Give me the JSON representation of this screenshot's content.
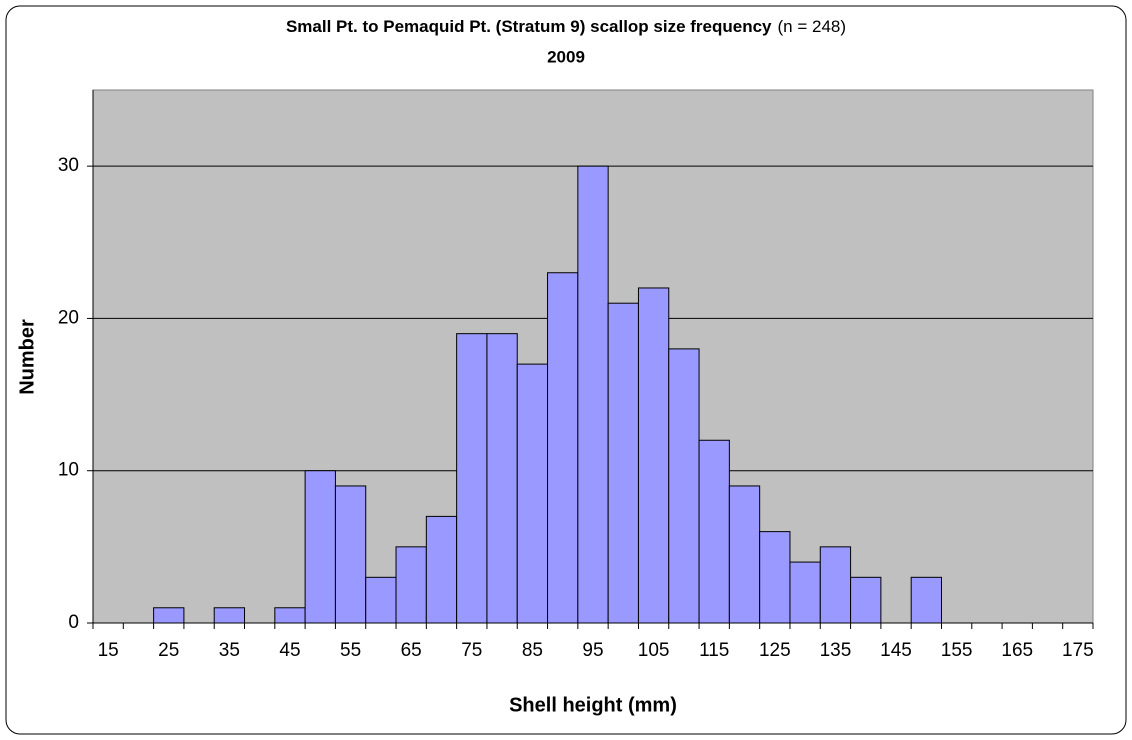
{
  "chart_data": {
    "type": "bar",
    "title": "Small Pt. to Pemaquid Pt. (Stratum 9) scallop size frequency",
    "title_note": "(n = 248)",
    "subtitle": "2009",
    "x_label": "Shell height (mm)",
    "y_label": "Number",
    "categories": [
      "15",
      null,
      "25",
      null,
      "35",
      null,
      "45",
      null,
      "55",
      null,
      "65",
      null,
      "75",
      null,
      "85",
      null,
      "95",
      null,
      "105",
      null,
      "115",
      null,
      "125",
      null,
      "135",
      null,
      "145",
      null,
      "155",
      null,
      "165",
      null,
      "175"
    ],
    "values": [
      0,
      0,
      1,
      0,
      1,
      0,
      1,
      10,
      9,
      3,
      5,
      7,
      19,
      19,
      17,
      23,
      30,
      21,
      22,
      18,
      12,
      9,
      6,
      4,
      5,
      3,
      0,
      3,
      0,
      0,
      0,
      0,
      0
    ],
    "color": "#9999ff",
    "ylim": [
      0,
      35
    ],
    "yticks": [
      0,
      10,
      20,
      30
    ],
    "grid": true
  }
}
